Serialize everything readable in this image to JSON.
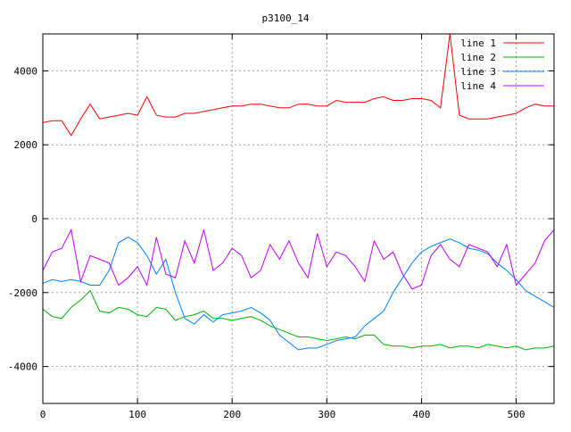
{
  "chart_data": {
    "type": "line",
    "title": "p3100_14",
    "xlabel": "",
    "ylabel": "",
    "xlim": [
      0,
      540
    ],
    "ylim": [
      -5000,
      5000
    ],
    "xticks": [
      0,
      100,
      200,
      300,
      400,
      500
    ],
    "yticks": [
      -4000,
      -2000,
      0,
      2000,
      4000
    ],
    "grid": true,
    "legend_position": "top-right",
    "x_step": 10,
    "series": [
      {
        "name": "line 1",
        "color": "#ff0000",
        "values": [
          2600,
          2650,
          2650,
          2250,
          2700,
          3100,
          2700,
          2750,
          2800,
          2850,
          2800,
          3300,
          2800,
          2750,
          2750,
          2850,
          2850,
          2900,
          2950,
          3000,
          3050,
          3050,
          3100,
          3100,
          3050,
          3000,
          3000,
          3100,
          3100,
          3050,
          3050,
          3200,
          3150,
          3150,
          3150,
          3250,
          3300,
          3200,
          3200,
          3250,
          3250,
          3200,
          3000,
          5000,
          2800,
          2700,
          2700,
          2700,
          2750,
          2800,
          2850,
          3000,
          3100,
          3050,
          3050
        ]
      },
      {
        "name": "line 2",
        "color": "#00b000",
        "values": [
          -2450,
          -2650,
          -2700,
          -2400,
          -2200,
          -1950,
          -2500,
          -2550,
          -2400,
          -2450,
          -2600,
          -2650,
          -2400,
          -2450,
          -2750,
          -2650,
          -2600,
          -2500,
          -2700,
          -2700,
          -2750,
          -2700,
          -2650,
          -2750,
          -2900,
          -3000,
          -3100,
          -3200,
          -3200,
          -3250,
          -3300,
          -3250,
          -3200,
          -3250,
          -3150,
          -3150,
          -3400,
          -3450,
          -3450,
          -3500,
          -3450,
          -3450,
          -3400,
          -3500,
          -3450,
          -3450,
          -3500,
          -3400,
          -3450,
          -3500,
          -3450,
          -3550,
          -3500,
          -3500,
          -3450
        ]
      },
      {
        "name": "line 3",
        "color": "#0080ff",
        "values": [
          -1750,
          -1650,
          -1700,
          -1650,
          -1700,
          -1800,
          -1800,
          -1400,
          -650,
          -500,
          -650,
          -1000,
          -1500,
          -1100,
          -2000,
          -2700,
          -2850,
          -2600,
          -2800,
          -2600,
          -2550,
          -2500,
          -2400,
          -2550,
          -2750,
          -3150,
          -3350,
          -3550,
          -3500,
          -3500,
          -3400,
          -3300,
          -3250,
          -3200,
          -2900,
          -2700,
          -2500,
          -2000,
          -1600,
          -1200,
          -900,
          -750,
          -650,
          -550,
          -650,
          -800,
          -850,
          -950,
          -1200,
          -1400,
          -1650,
          -1950,
          -2100,
          -2250,
          -2400
        ]
      },
      {
        "name": "line 4",
        "color": "#c000ff",
        "values": [
          -1400,
          -900,
          -800,
          -300,
          -1700,
          -1000,
          -1100,
          -1200,
          -1800,
          -1600,
          -1300,
          -1800,
          -500,
          -1500,
          -1600,
          -600,
          -1200,
          -300,
          -1400,
          -1200,
          -800,
          -1000,
          -1600,
          -1400,
          -700,
          -1100,
          -600,
          -1200,
          -1600,
          -400,
          -1300,
          -900,
          -1000,
          -1300,
          -1700,
          -600,
          -1100,
          -900,
          -1500,
          -1900,
          -1800,
          -1000,
          -700,
          -1100,
          -1300,
          -700,
          -800,
          -900,
          -1300,
          -700,
          -1800,
          -1500,
          -1200,
          -600,
          -300
        ]
      }
    ]
  }
}
